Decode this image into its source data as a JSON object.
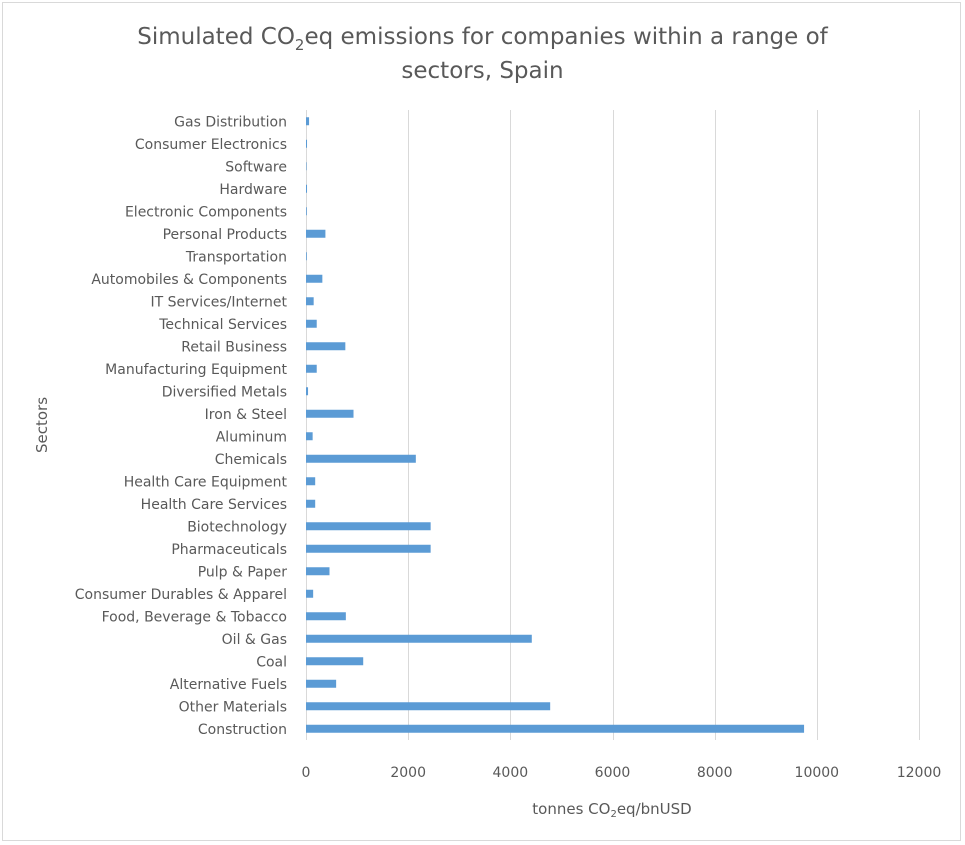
{
  "chart_data": {
    "type": "bar",
    "orientation": "horizontal",
    "title_parts": {
      "pre": "Simulated CO",
      "sub": "2",
      "post": "eq emissions for companies within a range of",
      "line2": "sectors, Spain"
    },
    "xlabel_parts": {
      "pre": "tonnes CO",
      "sub": "2",
      "post": "eq/bnUSD"
    },
    "ylabel": "Sectors",
    "xlim": [
      0,
      12000
    ],
    "xticks": [
      0,
      2000,
      4000,
      6000,
      8000,
      10000,
      12000
    ],
    "grid": true,
    "legend": "none",
    "bar_color": "#5b9bd5",
    "categories": [
      "Gas Distribution",
      "Consumer Electronics",
      "Software",
      "Hardware",
      "Electronic Components",
      "Personal Products",
      "Transportation",
      "Automobiles & Components",
      "IT Services/Internet",
      "Technical Services",
      "Retail Business",
      "Manufacturing Equipment",
      "Diversified Metals",
      "Iron & Steel",
      "Aluminum",
      "Chemicals",
      "Health Care Equipment",
      "Health Care Services",
      "Biotechnology",
      "Pharmaceuticals",
      "Pulp & Paper",
      "Consumer Durables & Apparel",
      "Food, Beverage & Tobacco",
      "Oil & Gas",
      "Coal",
      "Alternative Fuels",
      "Other Materials",
      "Construction"
    ],
    "values": [
      60,
      20,
      10,
      20,
      15,
      380,
      15,
      320,
      150,
      210,
      770,
      210,
      40,
      930,
      130,
      2150,
      180,
      180,
      2440,
      2440,
      460,
      140,
      780,
      4420,
      1120,
      590,
      4780,
      9750
    ]
  }
}
